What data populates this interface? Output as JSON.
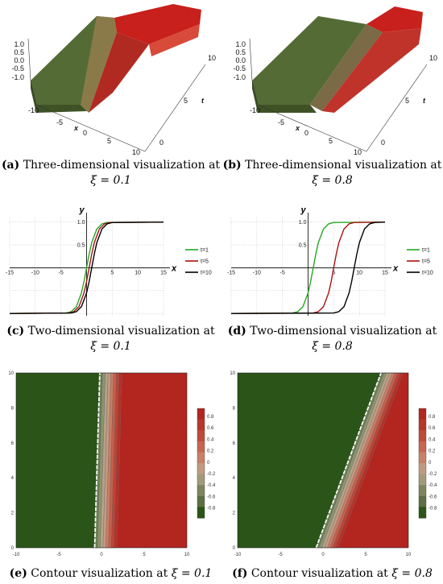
{
  "colors": {
    "green": "#556b35",
    "red": "#c8201c",
    "dark_green": "#2b5418",
    "dark_red": "#b3251f"
  },
  "captions": {
    "a": {
      "label": "(a)",
      "text": "Three-dimensional visualization at",
      "math": "ξ = 0.1"
    },
    "b": {
      "label": "(b)",
      "text": "Three-dimensional visualization at",
      "math": "ξ = 0.8"
    },
    "c": {
      "label": "(c)",
      "text": "Two-dimensional visualization at",
      "math": "ξ = 0.1"
    },
    "d": {
      "label": "(d)",
      "text": "Two-dimensional visualization at",
      "math": "ξ = 0.8"
    },
    "e": {
      "label": "(e)",
      "text": "Contour visualization at",
      "math": "ξ = 0.1"
    },
    "f": {
      "label": "(f)",
      "text": "Contour visualization at",
      "math": "ξ = 0.8"
    }
  },
  "chart_data": [
    {
      "id": "a",
      "type": "surface",
      "z_ticks": [
        "1.0",
        "0.5",
        "0.0",
        "-0.5",
        "-1.0"
      ],
      "x_ticks": [
        "-10",
        "-5",
        "0",
        "5",
        "10"
      ],
      "t_ticks": [
        "0",
        "5",
        "10"
      ],
      "xlabel": "x",
      "tlabel": "t",
      "xlim": [
        -10,
        10
      ],
      "tlim": [
        0,
        10
      ],
      "zlim": [
        -1,
        1
      ]
    },
    {
      "id": "b",
      "type": "surface",
      "z_ticks": [
        "1.0",
        "0.5",
        "0.0",
        "-0.5",
        "-1.0"
      ],
      "x_ticks": [
        "-10",
        "-5",
        "0",
        "5",
        "10"
      ],
      "t_ticks": [
        "0",
        "5",
        "10"
      ],
      "xlabel": "x",
      "tlabel": "t",
      "xlim": [
        -10,
        10
      ],
      "tlim": [
        0,
        10
      ],
      "zlim": [
        -1,
        1
      ]
    },
    {
      "id": "c",
      "type": "line",
      "xlabel": "x",
      "ylabel": "y",
      "xlim": [
        -15,
        15
      ],
      "ylim": [
        -1.05,
        1.1
      ],
      "x_ticks": [
        -15,
        -10,
        -5,
        5,
        10,
        15
      ],
      "y_ticks": [
        1.0,
        0.5
      ],
      "series": [
        {
          "name": "t=1",
          "color": "#22aa22",
          "x": [
            -15,
            -4,
            -3,
            -2,
            -1,
            -0.5,
            0,
            0.5,
            1,
            2,
            3,
            4,
            15
          ],
          "y": [
            -1,
            -0.99,
            -0.96,
            -0.85,
            -0.55,
            -0.3,
            0.0,
            0.3,
            0.55,
            0.85,
            0.96,
            0.99,
            1
          ]
        },
        {
          "name": "t=5",
          "color": "#aa1111",
          "x": [
            -15,
            -3.5,
            -2.5,
            -1.5,
            -0.5,
            0,
            0.5,
            1,
            1.5,
            2.5,
            3.5,
            4.5,
            15
          ],
          "y": [
            -1,
            -0.99,
            -0.96,
            -0.85,
            -0.55,
            -0.3,
            0.0,
            0.3,
            0.55,
            0.85,
            0.96,
            0.99,
            1
          ]
        },
        {
          "name": "t=10",
          "color": "#000000",
          "x": [
            -15,
            -3,
            -2,
            -1,
            0,
            0.5,
            1,
            1.5,
            2,
            3,
            4,
            5,
            15
          ],
          "y": [
            -1,
            -0.99,
            -0.96,
            -0.85,
            -0.55,
            -0.3,
            0.0,
            0.3,
            0.55,
            0.85,
            0.96,
            0.99,
            1
          ]
        }
      ]
    },
    {
      "id": "d",
      "type": "line",
      "xlabel": "x",
      "ylabel": "y",
      "xlim": [
        -15,
        15
      ],
      "ylim": [
        -1.05,
        1.1
      ],
      "x_ticks": [
        -15,
        -10,
        -5,
        5,
        10,
        15
      ],
      "y_ticks": [
        1.0,
        0.5
      ],
      "series": [
        {
          "name": "t=1",
          "color": "#22aa22",
          "x": [
            -15,
            -3,
            -2,
            -1,
            0,
            0.5,
            1,
            1.5,
            2,
            3,
            4,
            5,
            15
          ],
          "y": [
            -1,
            -0.99,
            -0.96,
            -0.85,
            -0.55,
            -0.3,
            0.0,
            0.3,
            0.55,
            0.85,
            0.96,
            0.99,
            1
          ]
        },
        {
          "name": "t=5",
          "color": "#aa1111",
          "x": [
            -15,
            1,
            2,
            3,
            4,
            4.5,
            5,
            5.5,
            6,
            7,
            8,
            9,
            15
          ],
          "y": [
            -1,
            -0.99,
            -0.96,
            -0.85,
            -0.55,
            -0.3,
            0.0,
            0.3,
            0.55,
            0.85,
            0.96,
            0.99,
            1
          ]
        },
        {
          "name": "t=10",
          "color": "#000000",
          "x": [
            -15,
            5,
            6,
            7,
            8,
            8.5,
            9,
            9.5,
            10,
            11,
            12,
            13,
            15
          ],
          "y": [
            -1,
            -0.99,
            -0.96,
            -0.85,
            -0.55,
            -0.3,
            0.0,
            0.3,
            0.55,
            0.85,
            0.96,
            0.99,
            1
          ]
        }
      ]
    },
    {
      "id": "e",
      "type": "heatmap",
      "xlim": [
        -10,
        10
      ],
      "ylim": [
        0,
        10
      ],
      "x_ticks": [
        -10,
        -5,
        0,
        5,
        10
      ],
      "y_ticks": [
        0,
        2,
        4,
        6,
        8,
        10
      ],
      "colorbar_ticks": [
        "0.8",
        "0.6",
        "0.4",
        "0.2",
        "0",
        "-0.2",
        "-0.4",
        "-0.6",
        "-0.8"
      ],
      "front": [
        {
          "x": -0.8,
          "y": 0
        },
        {
          "x": -0.2,
          "y": 10
        }
      ],
      "band_width": 2.6
    },
    {
      "id": "f",
      "type": "heatmap",
      "xlim": [
        -10,
        10
      ],
      "ylim": [
        0,
        10
      ],
      "x_ticks": [
        -10,
        -5,
        0,
        5,
        10
      ],
      "y_ticks": [
        0,
        2,
        4,
        6,
        8,
        10
      ],
      "colorbar_ticks": [
        "0.8",
        "0.6",
        "0.4",
        "0.2",
        "0",
        "-0.2",
        "-0.4",
        "-0.6",
        "-0.8"
      ],
      "front": [
        {
          "x": -0.8,
          "y": 0
        },
        {
          "x": 6.8,
          "y": 10
        }
      ],
      "band_width": 2.6
    }
  ]
}
